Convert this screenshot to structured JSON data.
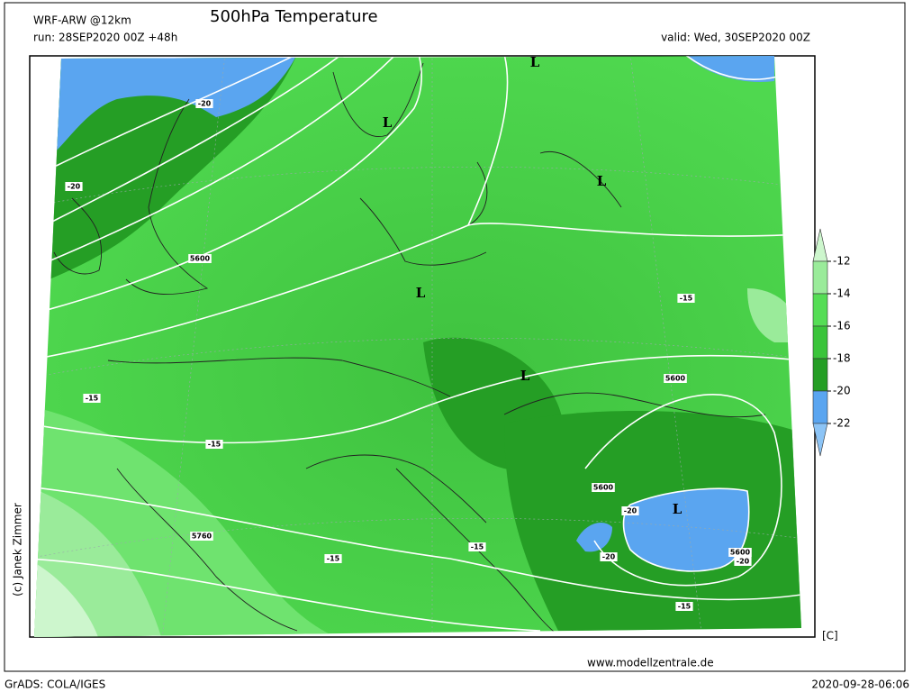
{
  "header": {
    "model": "WRF-ARW @12km",
    "title": "500hPa Temperature",
    "run": "run: 28SEP2020 00Z +48h",
    "valid": "valid: Wed, 30SEP2020 00Z"
  },
  "colorbar": {
    "unit": "[C]",
    "ticks": [
      -12,
      -14,
      -16,
      -18,
      -20,
      -22
    ],
    "colors": [
      "#cdf6cd",
      "#9aeb9a",
      "#55dd55",
      "#3ac43a",
      "#259e25",
      "#5aa5f0",
      "#8cc4f6"
    ]
  },
  "map": {
    "labels": [
      "L",
      "L",
      "L",
      "L",
      "L",
      "L",
      "-20",
      "-20",
      "-15",
      "-15",
      "-15",
      "-15",
      "-15",
      "-15",
      "-20",
      "-20",
      "-20",
      "5600",
      "5600",
      "5600",
      "5600",
      "5760"
    ]
  },
  "footer": {
    "copyright": "(c) Janek Zimmer",
    "website": "www.modellzentrale.de",
    "software": "GrADS: COLA/IGES",
    "timestamp": "2020-09-28-06:06"
  }
}
